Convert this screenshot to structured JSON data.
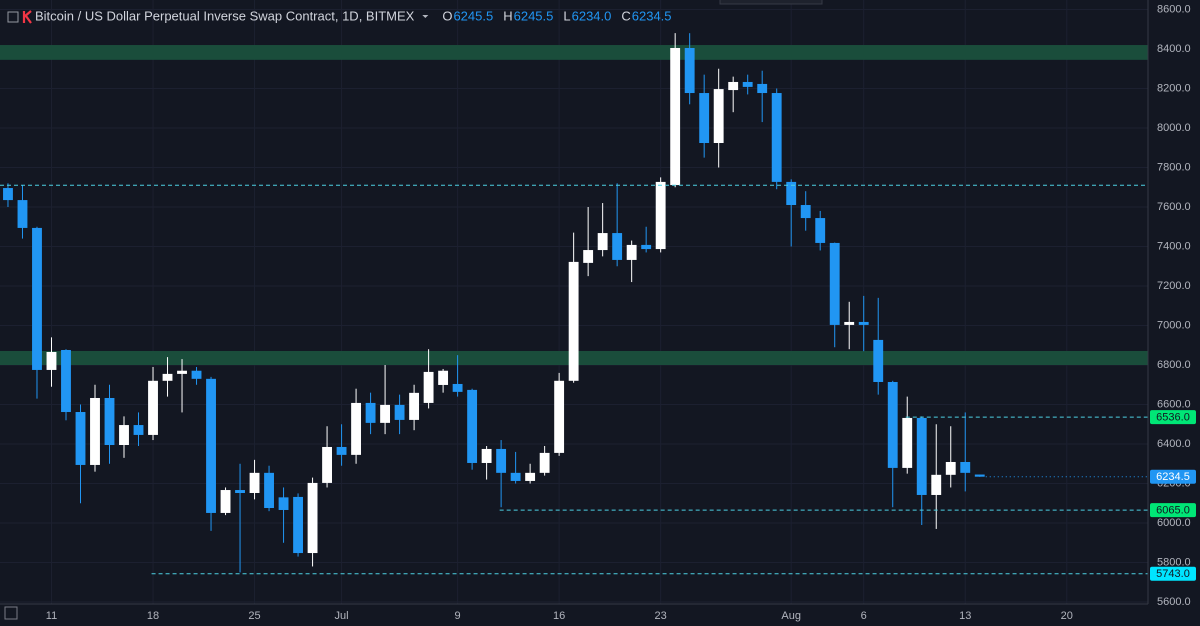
{
  "chart_data": {
    "type": "candlestick",
    "title": "Bitcoin / US Dollar Perpetual Inverse Swap Contract, 1D, BITMEX",
    "ohlc_legend": [
      {
        "key": "O",
        "text": "6245.5"
      },
      {
        "key": "H",
        "text": "6245.5"
      },
      {
        "key": "L",
        "text": "6234.0"
      },
      {
        "key": "C",
        "text": "6234.5"
      }
    ],
    "up_color": "#ffffff",
    "down_color": "#2196f3",
    "open": [
      7696,
      7635,
      7494,
      6775,
      6876,
      6562,
      6294,
      6633,
      6395,
      6496,
      6446,
      6720,
      6755,
      6771,
      6730,
      6051,
      6167,
      6152,
      6254,
      6130,
      6132,
      5848,
      6203,
      6385,
      6345,
      6608,
      6507,
      6598,
      6522,
      6608,
      6699,
      6704,
      6674,
      6304,
      6375,
      6254,
      6213,
      6254,
      6355,
      6720,
      7317,
      7382,
      7468,
      7332,
      7408,
      7387,
      7711,
      8405,
      8177,
      7924,
      8192,
      8233,
      8223,
      8177,
      7727,
      7610,
      7544,
      7418,
      7003,
      7018,
      6927,
      6714,
      6279,
      6532,
      6142,
      6244,
      6309,
      6245.5
    ],
    "high": [
      7720,
      7710,
      7500,
      6940,
      6880,
      6600,
      6700,
      6700,
      6540,
      6560,
      6790,
      6840,
      6830,
      6790,
      6740,
      6180,
      6300,
      6320,
      6290,
      6180,
      6150,
      6230,
      6490,
      6500,
      6680,
      6660,
      6800,
      6650,
      6700,
      6880,
      6780,
      6850,
      6680,
      6390,
      6420,
      6360,
      6300,
      6390,
      6760,
      7470,
      7600,
      7620,
      7720,
      7430,
      7500,
      7750,
      8480,
      8480,
      8270,
      8300,
      8260,
      8270,
      8290,
      8200,
      7740,
      7680,
      7580,
      7420,
      7120,
      7150,
      7140,
      6720,
      6640,
      6540,
      6500,
      6490,
      6560,
      6245.5
    ],
    "low": [
      7600,
      7440,
      6630,
      6690,
      6520,
      6100,
      6260,
      6300,
      6330,
      6390,
      6420,
      6640,
      6560,
      6700,
      5960,
      6040,
      5750,
      6120,
      6060,
      5900,
      5830,
      5780,
      6180,
      6290,
      6300,
      6450,
      6450,
      6450,
      6470,
      6580,
      6660,
      6640,
      6270,
      6220,
      6080,
      6200,
      6200,
      6240,
      6340,
      6710,
      7250,
      7350,
      7300,
      7220,
      7370,
      7370,
      7700,
      8120,
      7850,
      7800,
      8080,
      8170,
      8030,
      7690,
      7400,
      7480,
      7380,
      6890,
      6880,
      6870,
      6650,
      6080,
      6250,
      5990,
      5970,
      6180,
      6160,
      6234
    ],
    "close": [
      7635,
      7494,
      6775,
      6866,
      6562,
      6294,
      6633,
      6395,
      6496,
      6446,
      6720,
      6755,
      6771,
      6730,
      6051,
      6167,
      6152,
      6254,
      6076,
      6066,
      5848,
      6203,
      6385,
      6345,
      6608,
      6507,
      6598,
      6522,
      6659,
      6765,
      6771,
      6664,
      6304,
      6375,
      6254,
      6213,
      6254,
      6355,
      6720,
      7322,
      7382,
      7468,
      7332,
      7408,
      7387,
      7727,
      8405,
      8177,
      7924,
      8197,
      8233,
      8208,
      8177,
      7727,
      7610,
      7544,
      7418,
      7003,
      7018,
      7003,
      6714,
      6279,
      6532,
      6142,
      6244,
      6309,
      6254,
      6234.5
    ],
    "xlim": [
      -0.55,
      78.6
    ],
    "xticks": [
      {
        "value": 3,
        "label": "11"
      },
      {
        "value": 10,
        "label": "18"
      },
      {
        "value": 17,
        "label": "25"
      },
      {
        "value": 23,
        "label": "Jul"
      },
      {
        "value": 31,
        "label": "9"
      },
      {
        "value": 38,
        "label": "16"
      },
      {
        "value": 45,
        "label": "23"
      },
      {
        "value": 54,
        "label": "Aug"
      },
      {
        "value": 59,
        "label": "6"
      },
      {
        "value": 66,
        "label": "13"
      },
      {
        "value": 73,
        "label": "20"
      }
    ],
    "ylim": [
      5590,
      8648
    ],
    "yticks": [
      {
        "value": 5600,
        "label": "5600.0"
      },
      {
        "value": 5800,
        "label": "5800.0"
      },
      {
        "value": 6000,
        "label": "6000.0"
      },
      {
        "value": 6200,
        "label": "6200.0"
      },
      {
        "value": 6400,
        "label": "6400.0"
      },
      {
        "value": 6600,
        "label": "6600.0"
      },
      {
        "value": 6800,
        "label": "6800.0"
      },
      {
        "value": 7000,
        "label": "7000.0"
      },
      {
        "value": 7200,
        "label": "7200.0"
      },
      {
        "value": 7400,
        "label": "7400.0"
      },
      {
        "value": 7600,
        "label": "7600.0"
      },
      {
        "value": 7800,
        "label": "7800.0"
      },
      {
        "value": 8000,
        "label": "8000.0"
      },
      {
        "value": 8200,
        "label": "8200.0"
      },
      {
        "value": 8400,
        "label": "8400.0"
      },
      {
        "value": 8600,
        "label": "8600.0"
      }
    ],
    "grid": true,
    "zones": [
      {
        "from": 8345,
        "to": 8420,
        "color": "#1a4d3b"
      },
      {
        "from": 6800,
        "to": 6871,
        "color": "#1a4d3b"
      }
    ],
    "hlines": [
      {
        "value": 7710,
        "start": -0.55,
        "color": "#4dd0e1"
      },
      {
        "value": 6536,
        "label": "6536.0",
        "start": 61.9,
        "color": "#4dd0e1",
        "label_color": "#00e676"
      },
      {
        "value": 6065,
        "label": "6065.0",
        "start": 33.9,
        "color": "#4dd0e1",
        "label_color": "#00e676"
      },
      {
        "value": 5743,
        "label": "5743.0",
        "start": 9.9,
        "color": "#4dd0e1",
        "label_color": "#00e5ff"
      }
    ]
  }
}
